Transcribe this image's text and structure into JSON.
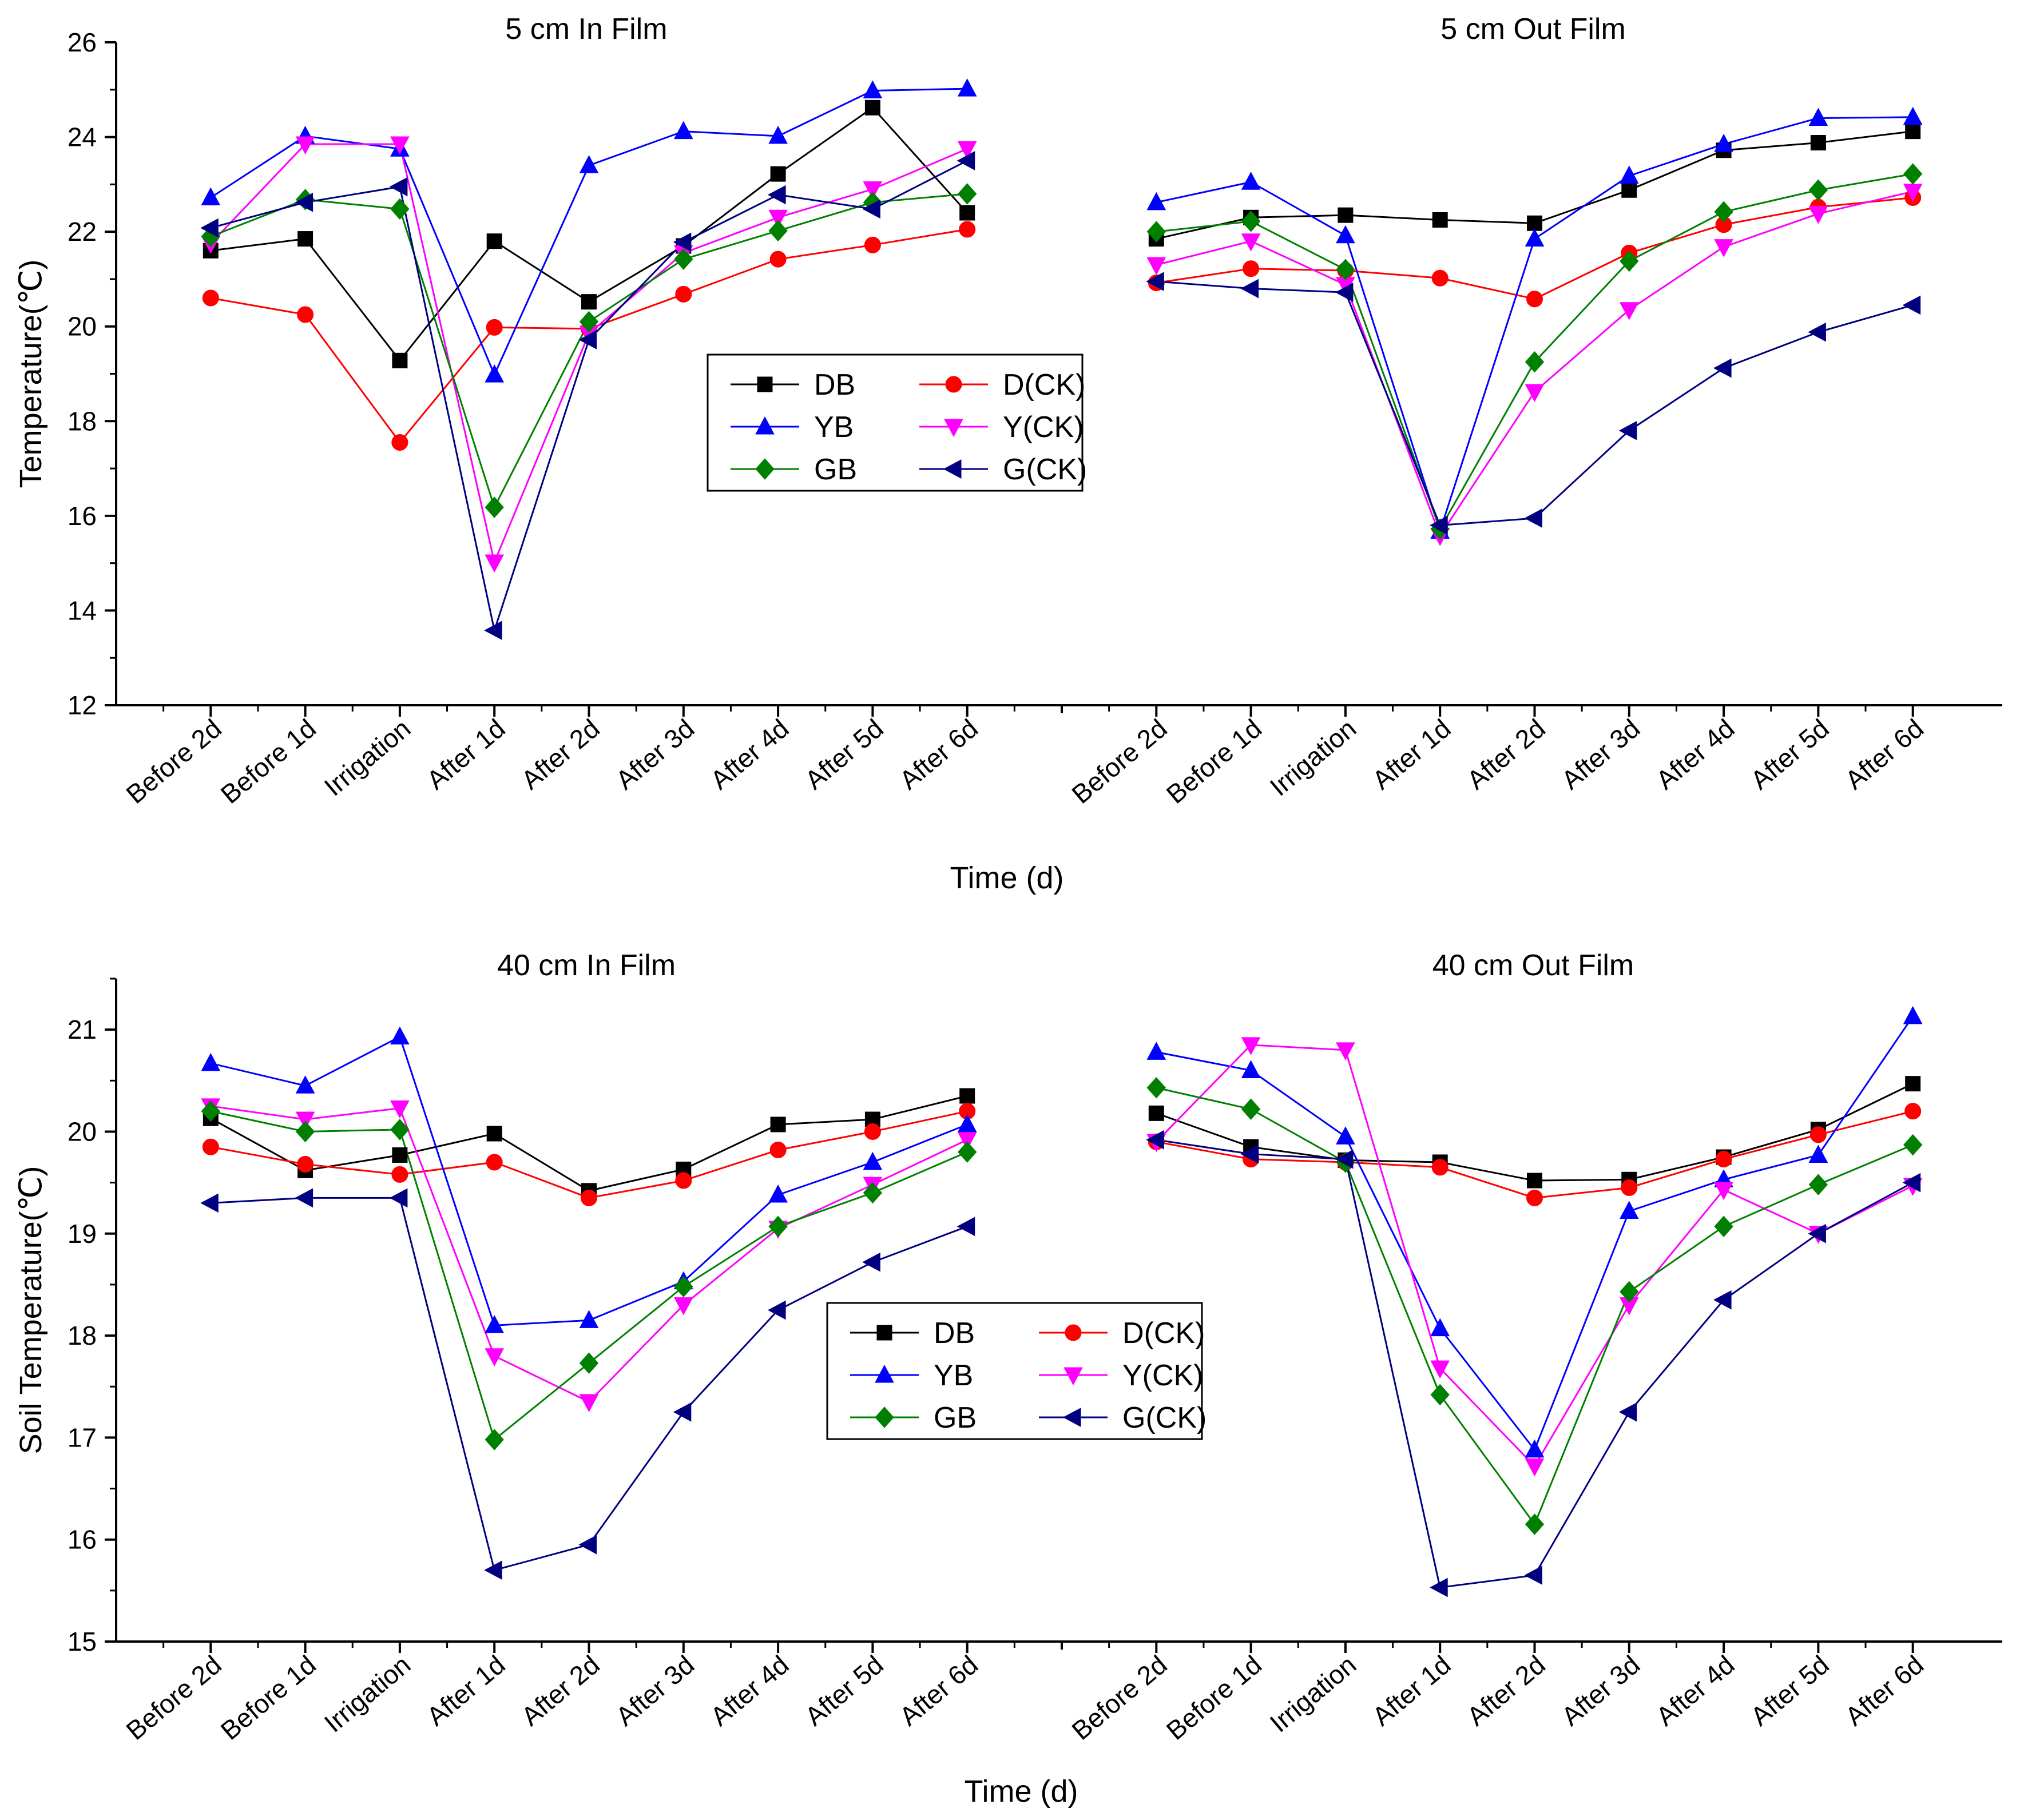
{
  "chart_data": {
    "type": "line",
    "categories": [
      "Before 2d",
      "Before 1d",
      "Irrigation",
      "After 1d",
      "After 2d",
      "After 3d",
      "After 4d",
      "After 5d",
      "After 6d"
    ],
    "series_styles": [
      {
        "name": "DB",
        "color": "#000000",
        "marker": "square"
      },
      {
        "name": "D(CK)",
        "color": "#ff0000",
        "marker": "circle"
      },
      {
        "name": "YB",
        "color": "#0000ff",
        "marker": "triangle-up"
      },
      {
        "name": "Y(CK)",
        "color": "#ff00ff",
        "marker": "triangle-down"
      },
      {
        "name": "GB",
        "color": "#008000",
        "marker": "diamond"
      },
      {
        "name": "G(CK)",
        "color": "#000080",
        "marker": "triangle-left"
      }
    ],
    "rows": [
      {
        "ylabel": "Temperature(℃)",
        "xlabel": "Time (d)",
        "ylim": [
          12,
          26
        ],
        "yticks": [
          12,
          14,
          16,
          18,
          20,
          22,
          24,
          26
        ],
        "legend_position": "center",
        "panels": [
          {
            "title": "5 cm  In Film",
            "series": [
              {
                "name": "DB",
                "values": [
                  21.6,
                  21.85,
                  19.28,
                  21.8,
                  20.52,
                  21.7,
                  23.22,
                  24.62,
                  22.4
                ]
              },
              {
                "name": "D(CK)",
                "values": [
                  20.6,
                  20.25,
                  17.55,
                  19.98,
                  19.95,
                  20.68,
                  21.42,
                  21.72,
                  22.05
                ]
              },
              {
                "name": "YB",
                "values": [
                  22.72,
                  24.02,
                  23.75,
                  18.98,
                  23.4,
                  24.12,
                  24.02,
                  24.98,
                  25.02
                ]
              },
              {
                "name": "Y(CK)",
                "values": [
                  21.75,
                  23.85,
                  23.85,
                  15.02,
                  19.85,
                  21.55,
                  22.3,
                  22.9,
                  23.75
                ]
              },
              {
                "name": "GB",
                "values": [
                  21.9,
                  22.68,
                  22.48,
                  16.18,
                  20.1,
                  21.42,
                  22.02,
                  22.62,
                  22.8
                ]
              },
              {
                "name": "G(CK)",
                "values": [
                  22.08,
                  22.62,
                  22.95,
                  13.58,
                  19.72,
                  21.78,
                  22.78,
                  22.48,
                  23.5
                ]
              }
            ]
          },
          {
            "title": "5 cm  Out Film",
            "series": [
              {
                "name": "DB",
                "values": [
                  21.85,
                  22.3,
                  22.35,
                  22.25,
                  22.18,
                  22.88,
                  23.72,
                  23.88,
                  24.12
                ]
              },
              {
                "name": "D(CK)",
                "values": [
                  20.92,
                  21.22,
                  21.18,
                  21.02,
                  20.58,
                  21.55,
                  22.15,
                  22.52,
                  22.72
                ]
              },
              {
                "name": "YB",
                "values": [
                  22.62,
                  23.05,
                  21.92,
                  15.68,
                  21.85,
                  23.18,
                  23.85,
                  24.4,
                  24.42
                ]
              },
              {
                "name": "Y(CK)",
                "values": [
                  21.3,
                  21.8,
                  20.88,
                  15.58,
                  18.62,
                  20.35,
                  21.68,
                  22.38,
                  22.85
                ]
              },
              {
                "name": "GB",
                "values": [
                  22.0,
                  22.22,
                  21.2,
                  15.72,
                  19.25,
                  21.38,
                  22.42,
                  22.88,
                  23.22
                ]
              },
              {
                "name": "G(CK)",
                "values": [
                  20.95,
                  20.8,
                  20.72,
                  15.8,
                  15.95,
                  17.8,
                  19.12,
                  19.88,
                  20.45
                ]
              }
            ]
          }
        ]
      },
      {
        "ylabel": "Soil Temperature(℃)",
        "xlabel": "Time (d)",
        "ylim": [
          15,
          21.5
        ],
        "yticks": [
          15,
          16,
          17,
          18,
          19,
          20,
          21
        ],
        "legend_position": "center",
        "panels": [
          {
            "title": "40 cm In Film",
            "series": [
              {
                "name": "DB",
                "values": [
                  20.13,
                  19.62,
                  19.77,
                  19.98,
                  19.42,
                  19.63,
                  20.07,
                  20.12,
                  20.35
                ]
              },
              {
                "name": "D(CK)",
                "values": [
                  19.85,
                  19.68,
                  19.58,
                  19.7,
                  19.35,
                  19.52,
                  19.82,
                  20.0,
                  20.2
                ]
              },
              {
                "name": "YB",
                "values": [
                  20.67,
                  20.45,
                  20.93,
                  18.1,
                  18.15,
                  18.53,
                  19.38,
                  19.7,
                  20.07
                ]
              },
              {
                "name": "Y(CK)",
                "values": [
                  20.25,
                  20.12,
                  20.23,
                  17.8,
                  17.35,
                  18.3,
                  19.05,
                  19.48,
                  19.92
                ]
              },
              {
                "name": "GB",
                "values": [
                  20.2,
                  20.0,
                  20.02,
                  16.98,
                  17.73,
                  18.48,
                  19.07,
                  19.4,
                  19.8
                ]
              },
              {
                "name": "G(CK)",
                "values": [
                  19.3,
                  19.35,
                  19.35,
                  15.7,
                  15.95,
                  17.25,
                  18.25,
                  18.72,
                  19.07
                ]
              }
            ]
          },
          {
            "title": "40 cm Out Film",
            "series": [
              {
                "name": "DB",
                "values": [
                  20.18,
                  19.85,
                  19.72,
                  19.7,
                  19.52,
                  19.53,
                  19.75,
                  20.02,
                  20.47
                ]
              },
              {
                "name": "D(CK)",
                "values": [
                  19.9,
                  19.73,
                  19.7,
                  19.65,
                  19.35,
                  19.45,
                  19.73,
                  19.97,
                  20.2
                ]
              },
              {
                "name": "YB",
                "values": [
                  20.78,
                  20.6,
                  19.95,
                  18.07,
                  16.88,
                  19.22,
                  19.53,
                  19.77,
                  21.13
                ]
              },
              {
                "name": "Y(CK)",
                "values": [
                  19.9,
                  20.85,
                  20.8,
                  17.68,
                  16.72,
                  18.3,
                  19.43,
                  19.0,
                  19.47
                ]
              },
              {
                "name": "GB",
                "values": [
                  20.43,
                  20.22,
                  19.7,
                  17.42,
                  16.15,
                  18.43,
                  19.07,
                  19.48,
                  19.87
                ]
              },
              {
                "name": "G(CK)",
                "values": [
                  19.92,
                  19.78,
                  19.73,
                  15.53,
                  15.65,
                  17.25,
                  18.35,
                  19.0,
                  19.5
                ]
              }
            ]
          }
        ]
      }
    ]
  }
}
